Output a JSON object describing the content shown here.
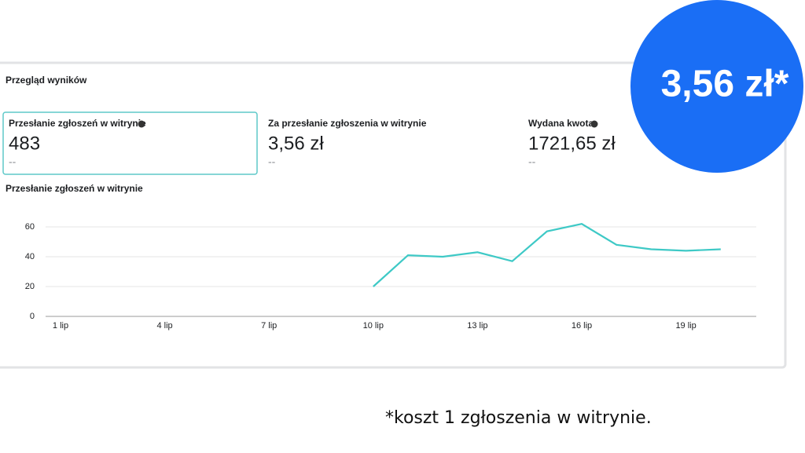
{
  "panel_title": "Przegląd wyników",
  "metrics": [
    {
      "label": "Przesłanie zgłoszeń w witrynie",
      "value": "483",
      "comparison": "--"
    },
    {
      "label": "Za przesłanie zgłoszenia w witrynie",
      "value": "3,56 zł",
      "comparison": "--"
    },
    {
      "label": "Wydana kwota",
      "value": "1721,65 zł",
      "comparison": "--"
    }
  ],
  "chart_data": {
    "type": "line",
    "title": "Przesłanie zgłoszeń w witrynie",
    "categories": [
      "1 lip",
      null,
      null,
      "4 lip",
      null,
      null,
      "7 lip",
      null,
      null,
      "10 lip",
      null,
      null,
      "13 lip",
      null,
      null,
      "16 lip",
      null,
      null,
      "19 lip",
      null
    ],
    "values": [
      null,
      null,
      null,
      null,
      null,
      null,
      null,
      null,
      null,
      20,
      41,
      40,
      43,
      37,
      57,
      62,
      48,
      45,
      44,
      45
    ],
    "color": "#3ec9c6",
    "ylim": [
      0,
      60
    ],
    "yticks": [
      0,
      20,
      40,
      60
    ],
    "grid": true
  },
  "badge": "3,56 zł*",
  "footnote": "*koszt 1 zgłoszenia w witrynie."
}
